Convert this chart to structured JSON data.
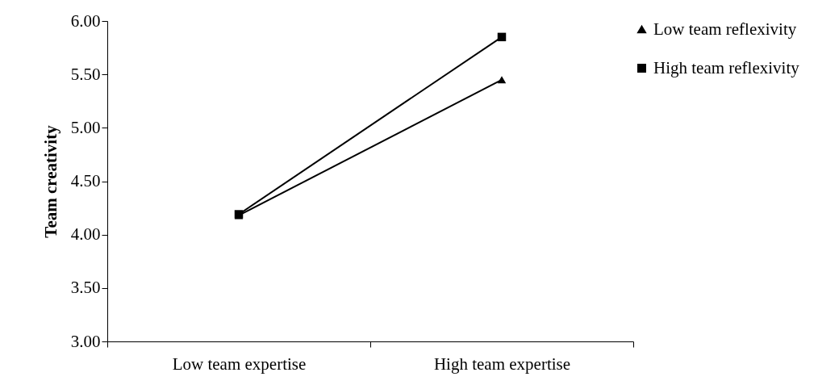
{
  "chart_data": {
    "type": "line",
    "ylabel": "Team creativity",
    "categories": [
      "Low team expertise",
      "High team expertise"
    ],
    "series": [
      {
        "name": "Low team reflexivity",
        "color": "#000000",
        "marker": "triangle",
        "values": [
          4.18,
          5.45
        ]
      },
      {
        "name": "High team reflexivity",
        "color": "#000000",
        "marker": "square",
        "values": [
          4.19,
          5.85
        ]
      }
    ],
    "ylim": [
      3,
      6
    ],
    "yticks": [
      {
        "value": 3,
        "label": "3.00"
      },
      {
        "value": 3.5,
        "label": "3.50"
      },
      {
        "value": 4,
        "label": "4.00"
      },
      {
        "value": 4.5,
        "label": "4.50"
      },
      {
        "value": 5,
        "label": "5.00"
      },
      {
        "value": 5.5,
        "label": "5.50"
      },
      {
        "value": 6,
        "label": "6.00"
      }
    ],
    "grid": false,
    "legend": "top right",
    "line_style": "solid"
  }
}
